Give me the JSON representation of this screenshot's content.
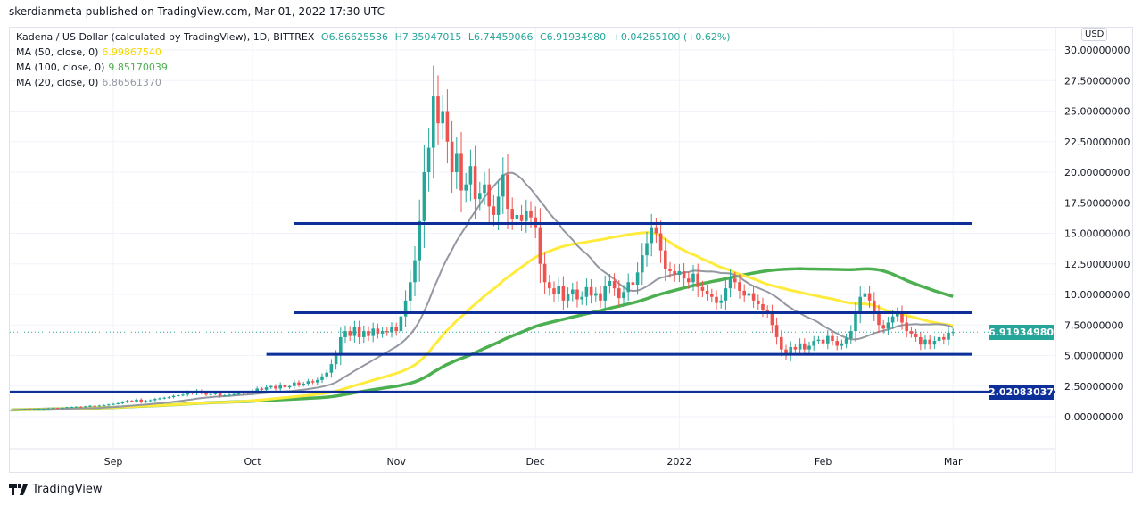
{
  "header": {
    "published": "skerdianmeta published on TradingView.com, Mar 01, 2022 17:30 UTC"
  },
  "legend": {
    "symbol": "Kadena / US Dollar (calculated by TradingView), 1D, BITTREX",
    "o": "O6.86625536",
    "h": "H7.35047015",
    "l": "L6.74459066",
    "c": "C6.91934980",
    "change": "+0.04265100 (+0.62%)",
    "ma": [
      {
        "label": "MA (50, close, 0)",
        "value": "6.99867540",
        "period": 50,
        "color": "#ffeb3b"
      },
      {
        "label": "MA (100, close, 0)",
        "value": "9.85170039",
        "period": 100,
        "color": "#4caf50"
      },
      {
        "label": "MA (20, close, 0)",
        "value": "6.86561370",
        "period": 20,
        "color": "#9598a1"
      }
    ]
  },
  "axis": {
    "currency": "USD",
    "price_tag": "6.91934980",
    "level_tag": "2.02083037"
  },
  "colors": {
    "up": "#26a69a",
    "down": "#ef5350",
    "hline": "#0d2f9a"
  },
  "brand": {
    "name": "TradingView"
  },
  "chart_data": {
    "type": "candlestick",
    "ylim": [
      -2,
      32
    ],
    "yticks": [
      "30.00000000",
      "27.50000000",
      "25.00000000",
      "22.50000000",
      "20.00000000",
      "17.50000000",
      "15.00000000",
      "12.50000000",
      "10.00000000",
      "7.50000000",
      "5.00000000",
      "2.50000000",
      "0.00000000"
    ],
    "ytick_values": [
      30,
      27.5,
      25,
      22.5,
      20,
      17.5,
      15,
      12.5,
      10,
      7.5,
      5,
      2.5,
      0
    ],
    "xticks": [
      {
        "label": "Sep",
        "date": "2021-09-01"
      },
      {
        "label": "Oct",
        "date": "2021-10-01"
      },
      {
        "label": "Nov",
        "date": "2021-11-01"
      },
      {
        "label": "Dec",
        "date": "2021-12-01"
      },
      {
        "label": "2022",
        "date": "2022-01-01"
      },
      {
        "label": "Feb",
        "date": "2022-02-01"
      },
      {
        "label": "Mar",
        "date": "2022-03-01"
      }
    ],
    "first_date": "2021-08-10",
    "closes": [
      0.55,
      0.58,
      0.6,
      0.62,
      0.6,
      0.63,
      0.65,
      0.66,
      0.7,
      0.72,
      0.7,
      0.74,
      0.78,
      0.8,
      0.82,
      0.8,
      0.85,
      0.9,
      0.88,
      0.92,
      0.95,
      1.0,
      1.05,
      1.1,
      1.2,
      1.3,
      1.25,
      1.4,
      1.2,
      1.3,
      1.35,
      1.45,
      1.5,
      1.55,
      1.6,
      1.7,
      1.75,
      1.8,
      2.0,
      1.9,
      2.1,
      1.95,
      1.8,
      1.85,
      1.9,
      1.7,
      1.75,
      1.8,
      1.85,
      1.9,
      2.0,
      1.9,
      2.1,
      2.3,
      2.2,
      2.4,
      2.5,
      2.3,
      2.6,
      2.4,
      2.5,
      2.8,
      2.6,
      2.7,
      2.9,
      2.8,
      3.0,
      3.3,
      3.6,
      4.3,
      5.0,
      6.5,
      7.0,
      6.6,
      7.3,
      6.5,
      7.0,
      6.6,
      7.2,
      6.8,
      7.0,
      6.9,
      7.3,
      7.0,
      8.2,
      9.5,
      11.0,
      12.8,
      16.0,
      20.0,
      22.0,
      26.2,
      24.0,
      25.0,
      22.5,
      20.0,
      21.5,
      18.5,
      19.0,
      20.5,
      17.8,
      18.3,
      19.0,
      17.2,
      16.5,
      18.0,
      19.8,
      17.0,
      16.2,
      16.5,
      16.0,
      16.8,
      16.3,
      15.5,
      12.5,
      11.0,
      10.5,
      10.0,
      10.7,
      9.5,
      10.0,
      10.4,
      9.6,
      9.8,
      10.6,
      9.9,
      10.1,
      9.5,
      10.7,
      11.1,
      10.5,
      9.7,
      10.2,
      11.0,
      10.8,
      11.8,
      13.2,
      14.2,
      15.5,
      15.0,
      13.6,
      12.1,
      11.9,
      11.6,
      11.9,
      11.3,
      11.0,
      11.7,
      10.6,
      10.3,
      10.0,
      9.8,
      9.3,
      9.5,
      10.5,
      11.3,
      11.0,
      10.3,
      9.9,
      10.1,
      9.5,
      9.2,
      8.7,
      8.5,
      7.5,
      6.5,
      5.5,
      5.0,
      5.7,
      5.5,
      6.0,
      5.5,
      5.8,
      6.2,
      6.3,
      6.0,
      6.6,
      6.2,
      5.8,
      6.0,
      6.4,
      7.0,
      8.5,
      9.8,
      10.1,
      9.5,
      8.5,
      7.5,
      7.2,
      7.7,
      8.2,
      8.5,
      7.7,
      7.0,
      6.8,
      6.5,
      5.9,
      6.3,
      5.9,
      6.2,
      6.5,
      6.3,
      6.87,
      6.919
    ],
    "horizontal_lines": [
      {
        "level": 15.8,
        "from": "2021-10-10",
        "to": "2022-03-05"
      },
      {
        "level": 8.5,
        "from": "2021-10-10",
        "to": "2022-03-05"
      },
      {
        "level": 5.1,
        "from": "2021-10-04",
        "to": "2022-03-05"
      },
      {
        "level": 2.02083037,
        "from": "full",
        "to": "full"
      }
    ],
    "last_price": 6.9193498
  }
}
